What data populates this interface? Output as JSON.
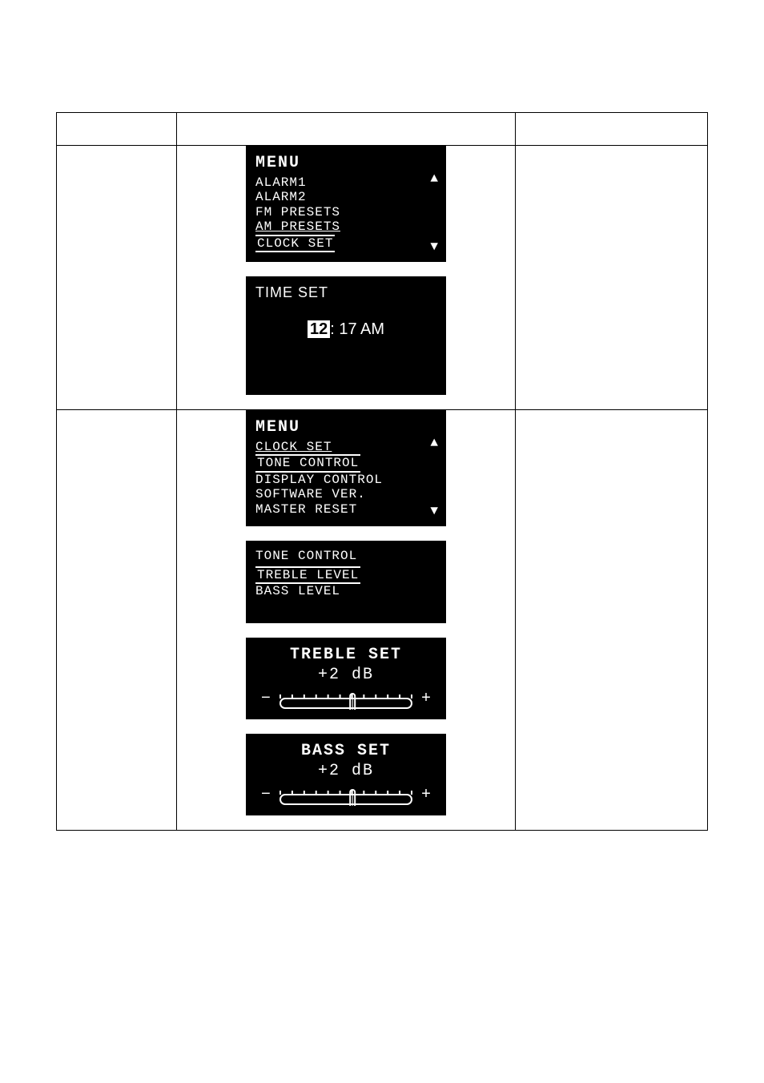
{
  "screens": {
    "menu1": {
      "title": "MENU",
      "items": [
        "ALARM1",
        "ALARM2",
        "FM PRESETS",
        "AM PRESETS",
        "CLOCK SET"
      ],
      "selected_index": 4,
      "arrow_up": "▲",
      "arrow_down": "▼",
      "bg_color": "#000000",
      "fg_color": "#ffffff"
    },
    "timeset": {
      "title": "TIME SET",
      "hour": "12",
      "rest": ": 17 AM",
      "bg_color": "#000000",
      "fg_color": "#ffffff",
      "highlight_bg": "#ffffff",
      "highlight_fg": "#000000"
    },
    "menu2": {
      "title": "MENU",
      "items": [
        "CLOCK SET",
        "TONE CONTROL",
        "DISPLAY CONTROL",
        "SOFTWARE VER.",
        "MASTER RESET"
      ],
      "selected_index": 1,
      "underline_index": 0,
      "arrow_up": "▲",
      "arrow_down": "▼"
    },
    "tonecontrol": {
      "title": "TONE CONTROL",
      "items": [
        "TREBLE LEVEL",
        "BASS LEVEL"
      ],
      "selected_index": 0
    },
    "treble": {
      "title": "TREBLE SET",
      "value_label": "+2 dB",
      "minus": "−",
      "plus": "+",
      "slider": {
        "ticks_left": 6,
        "ticks_right": 5,
        "pointer_pos": 0.55,
        "stroke": "#ffffff",
        "stroke_width": 2
      }
    },
    "bass": {
      "title": "BASS SET",
      "value_label": "+2 dB",
      "minus": "−",
      "plus": "+",
      "slider": {
        "ticks_left": 6,
        "ticks_right": 5,
        "pointer_pos": 0.55,
        "stroke": "#ffffff",
        "stroke_width": 2
      }
    }
  }
}
